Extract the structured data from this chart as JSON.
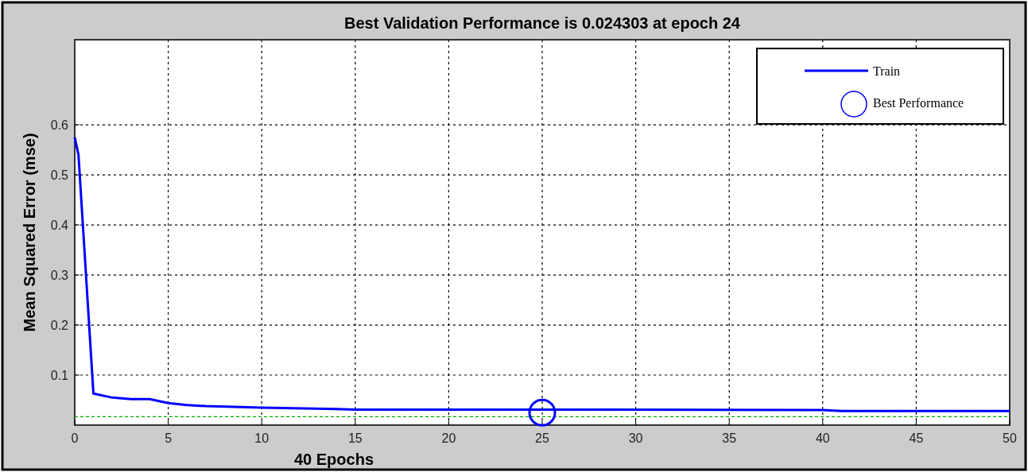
{
  "chart_data": {
    "type": "line",
    "title": "Best Validation Performance is 0.024303 at epoch 24",
    "xlabel": "40 Epochs",
    "ylabel": "Mean Squared Error  (mse)",
    "xlim": [
      0,
      50
    ],
    "xticks": [
      0,
      5,
      10,
      15,
      20,
      25,
      30,
      35,
      40,
      45,
      50
    ],
    "ylim": [
      0,
      0.77
    ],
    "yticks": [
      0.1,
      0.2,
      0.3,
      0.4,
      0.5,
      0.6
    ],
    "grid": true,
    "legend": "top right",
    "line_style": "solid",
    "ref_lines": [
      {
        "axis": "y",
        "value": 0.017,
        "color": "#00aa00",
        "line_style": "dashed"
      }
    ],
    "series": [
      {
        "name": "Train",
        "color": "#0000ff",
        "x": [
          0,
          0.2,
          1,
          2,
          3,
          4,
          5,
          6,
          7,
          10,
          14,
          15,
          25,
          40,
          41,
          50
        ],
        "values": [
          0.575,
          0.54,
          0.063,
          0.055,
          0.052,
          0.052,
          0.044,
          0.04,
          0.038,
          0.035,
          0.032,
          0.031,
          0.031,
          0.03,
          0.028,
          0.028
        ]
      },
      {
        "name": "Best Performance",
        "type": "scatter",
        "color": "#0000ff",
        "marker": "circle",
        "x": [
          25
        ],
        "values": [
          0.025
        ]
      }
    ]
  }
}
